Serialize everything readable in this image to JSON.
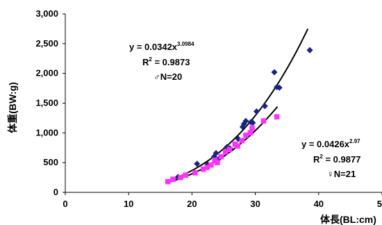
{
  "chart_data": {
    "type": "scatter",
    "xlabel": "体長(BL:cm)",
    "ylabel": "体重(BW:g)",
    "xlim": [
      0,
      50
    ],
    "ylim": [
      0,
      3000
    ],
    "x_ticks": [
      "0",
      "10",
      "20",
      "30",
      "40",
      "50"
    ],
    "y_ticks": [
      "0",
      "500",
      "1,000",
      "1,500",
      "2,000",
      "2,500",
      "3,000"
    ],
    "grid": false,
    "series": [
      {
        "marker": "diamond",
        "color": "#1a237e",
        "points": [
          [
            17.8,
            260
          ],
          [
            20.8,
            480
          ],
          [
            23.5,
            600
          ],
          [
            23.8,
            660
          ],
          [
            25.5,
            760
          ],
          [
            28.0,
            1100
          ],
          [
            28.2,
            1150
          ],
          [
            28.5,
            1200
          ],
          [
            29.3,
            1180
          ],
          [
            29.6,
            1170
          ],
          [
            30.2,
            1360
          ],
          [
            33.0,
            2020
          ],
          [
            33.4,
            1770
          ],
          [
            33.8,
            1760
          ],
          [
            38.6,
            2390
          ],
          [
            22.5,
            470
          ],
          [
            24.2,
            560
          ],
          [
            26.0,
            740
          ],
          [
            27.3,
            900
          ],
          [
            31.5,
            1450
          ]
        ],
        "fit": {
          "a": 0.0342,
          "b": 3.0984,
          "x_range": [
            16.5,
            38.3
          ]
        }
      },
      {
        "marker": "square",
        "color": "#ff33ff",
        "points": [
          [
            16.2,
            180
          ],
          [
            17.0,
            220
          ],
          [
            19.0,
            290
          ],
          [
            20.5,
            330
          ],
          [
            21.8,
            390
          ],
          [
            22.4,
            420
          ],
          [
            23.6,
            540
          ],
          [
            24.0,
            500
          ],
          [
            24.6,
            600
          ],
          [
            25.3,
            680
          ],
          [
            26.8,
            810
          ],
          [
            27.2,
            780
          ],
          [
            28.5,
            960
          ],
          [
            29.2,
            1000
          ],
          [
            29.5,
            1080
          ],
          [
            31.3,
            1200
          ],
          [
            33.4,
            1270
          ],
          [
            18.2,
            250
          ],
          [
            25.9,
            720
          ],
          [
            23.0,
            460
          ],
          [
            27.9,
            870
          ]
        ],
        "fit": {
          "a": 0.0426,
          "b": 2.97,
          "x_range": [
            16.5,
            33.5
          ]
        }
      }
    ],
    "annotations": [
      {
        "equation": "y = 0.0342x",
        "exponent": "3.0984",
        "r2": "R",
        "r2_sup": "2",
        "r2_value": " = 0.9873",
        "n": "♂N=20"
      },
      {
        "equation": "y = 0.0426x",
        "exponent": "2.97",
        "r2": "R",
        "r2_sup": "2",
        "r2_value": " = 0.9877",
        "n": "♀N=21"
      }
    ]
  }
}
